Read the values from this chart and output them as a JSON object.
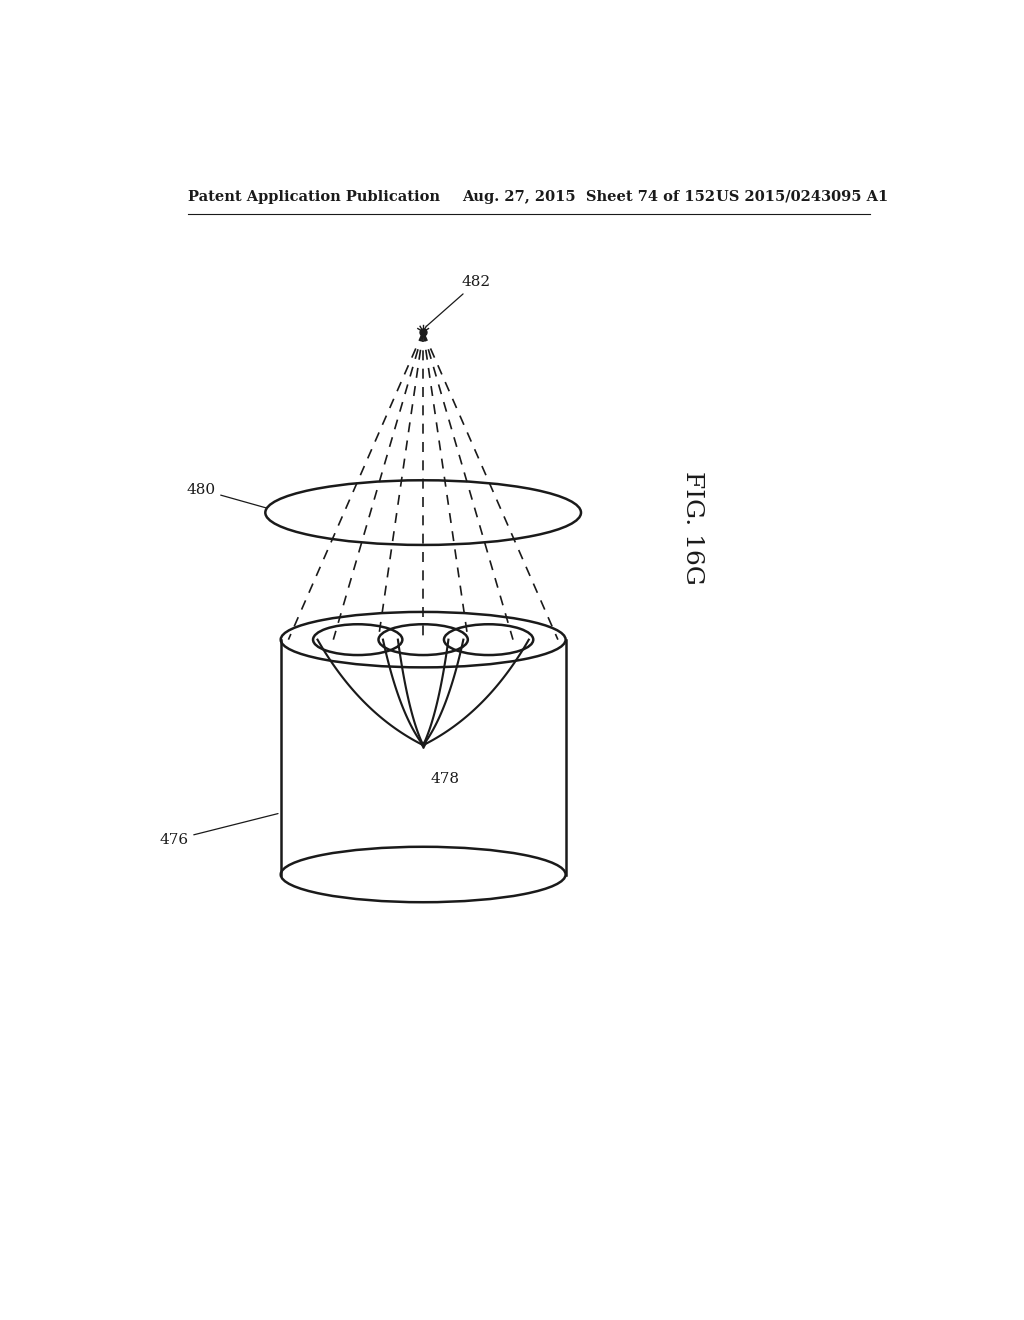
{
  "title_left": "Patent Application Publication",
  "title_mid": "Aug. 27, 2015  Sheet 74 of 152",
  "title_right": "US 2015/0243095 A1",
  "fig_label": "FIG. 16G",
  "label_482": "482",
  "label_480": "480",
  "label_478": "478",
  "label_476": "476",
  "bg_color": "#ffffff",
  "line_color": "#1a1a1a",
  "header_fontsize": 10.5,
  "label_fontsize": 11,
  "fig_label_fontsize": 18
}
